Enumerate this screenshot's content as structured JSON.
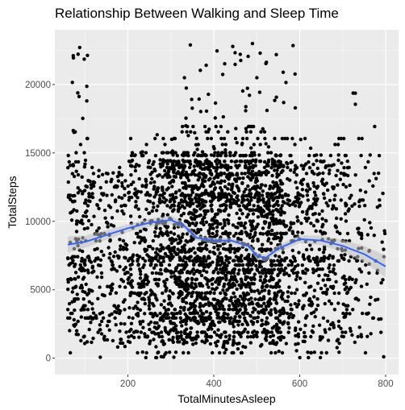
{
  "chart_data": {
    "type": "scatter",
    "title": "Relationship Between Walking and Sleep Time",
    "xlabel": "TotalMinutesAsleep",
    "ylabel": "TotalSteps",
    "xlim": [
      30,
      830
    ],
    "ylim": [
      -1200,
      24000
    ],
    "x_ticks": [
      200,
      400,
      600,
      800
    ],
    "y_ticks": [
      0,
      5000,
      10000,
      15000,
      20000
    ],
    "x_tick_labels": [
      "200",
      "400",
      "600",
      "800"
    ],
    "y_tick_labels": [
      "0",
      "5000",
      "10000",
      "15000",
      "20000"
    ],
    "grid": true,
    "legend": "none",
    "colors": {
      "panel": "#ebebeb",
      "grid": "#ffffff",
      "points": "#000000",
      "smooth_line": "#3366ff",
      "ribbon": "#c0c0c0"
    },
    "points_note": "",
    "point_clusters": [
      {
        "x_range": [
          60,
          110
        ],
        "y_range": [
          0,
          23000
        ],
        "density": 0.45
      },
      {
        "x_range": [
          110,
          200
        ],
        "y_range": [
          0,
          14000
        ],
        "density": 0.3
      },
      {
        "x_range": [
          200,
          260
        ],
        "y_range": [
          0,
          16500
        ],
        "density": 0.5
      },
      {
        "x_range": [
          260,
          320
        ],
        "y_range": [
          0,
          16500
        ],
        "density": 0.8
      },
      {
        "x_range": [
          320,
          560
        ],
        "y_range": [
          0,
          17000
        ],
        "density": 1.0
      },
      {
        "x_range": [
          560,
          720
        ],
        "y_range": [
          0,
          16500
        ],
        "density": 0.4
      },
      {
        "x_range": [
          720,
          800
        ],
        "y_range": [
          0,
          18000
        ],
        "density": 0.15
      }
    ],
    "smooth": {
      "x": [
        60,
        100,
        150,
        200,
        250,
        300,
        330,
        360,
        400,
        440,
        480,
        500,
        520,
        550,
        600,
        650,
        700,
        750,
        800
      ],
      "y": [
        8300,
        8500,
        9000,
        9500,
        9900,
        10100,
        9700,
        8800,
        8600,
        8600,
        8200,
        7500,
        7300,
        8000,
        8700,
        8600,
        8200,
        7600,
        6700
      ],
      "se": [
        600,
        450,
        350,
        300,
        300,
        320,
        250,
        200,
        200,
        200,
        220,
        250,
        250,
        250,
        300,
        350,
        450,
        600,
        800
      ]
    }
  }
}
